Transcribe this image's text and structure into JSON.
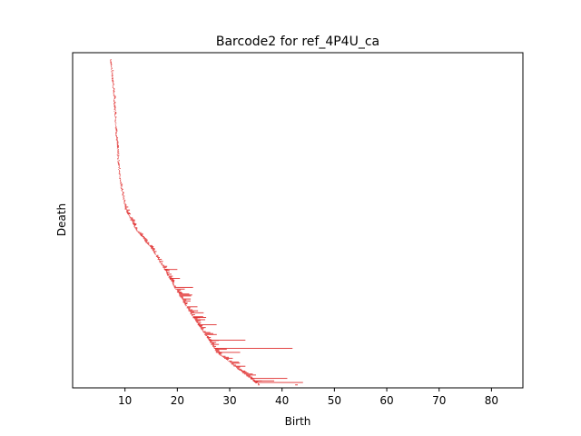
{
  "chart_data": {
    "type": "barcode",
    "title": "Barcode2 for ref_4P4U_ca",
    "xlabel": "Birth",
    "ylabel": "Death",
    "xlim": [
      0,
      86
    ],
    "x_ticks": [
      10,
      20,
      30,
      40,
      50,
      60,
      70,
      80
    ],
    "y_ticks_shown": false,
    "bar_color": "#e03030",
    "bar_count": 330,
    "shape": {
      "y_bar_start": 0.02,
      "y_bar_end": 0.99,
      "control_points": [
        {
          "t": 0.0,
          "birth": 7.2
        },
        {
          "t": 0.08,
          "birth": 7.7
        },
        {
          "t": 0.2,
          "birth": 8.2
        },
        {
          "t": 0.3,
          "birth": 8.6
        },
        {
          "t": 0.38,
          "birth": 9.1
        },
        {
          "t": 0.42,
          "birth": 9.6
        },
        {
          "t": 0.46,
          "birth": 10.1
        },
        {
          "t": 0.52,
          "birth": 12.0
        },
        {
          "t": 0.58,
          "birth": 15.0
        },
        {
          "t": 0.63,
          "birth": 17.0
        },
        {
          "t": 0.7,
          "birth": 19.5
        },
        {
          "t": 0.78,
          "birth": 22.5
        },
        {
          "t": 0.85,
          "birth": 25.5
        },
        {
          "t": 0.9,
          "birth": 27.5
        },
        {
          "t": 0.95,
          "birth": 31.5
        },
        {
          "t": 1.0,
          "birth": 35.5
        }
      ]
    },
    "long_bars": [
      {
        "birth": 17.5,
        "death": 20.0
      },
      {
        "birth": 18.5,
        "death": 20.5
      },
      {
        "birth": 19.5,
        "death": 23.0
      },
      {
        "birth": 23.0,
        "death": 25.5
      },
      {
        "birth": 24.0,
        "death": 27.5
      },
      {
        "birth": 26.0,
        "death": 33.0
      },
      {
        "birth": 27.0,
        "death": 42.0
      },
      {
        "birth": 27.5,
        "death": 32.0
      },
      {
        "birth": 31.0,
        "death": 33.0
      },
      {
        "birth": 34.5,
        "death": 38.5
      },
      {
        "birth": 35.0,
        "death": 44.0
      },
      {
        "birth": 34.0,
        "death": 41.0
      },
      {
        "birth": 42.5,
        "death": 43.0
      }
    ]
  }
}
